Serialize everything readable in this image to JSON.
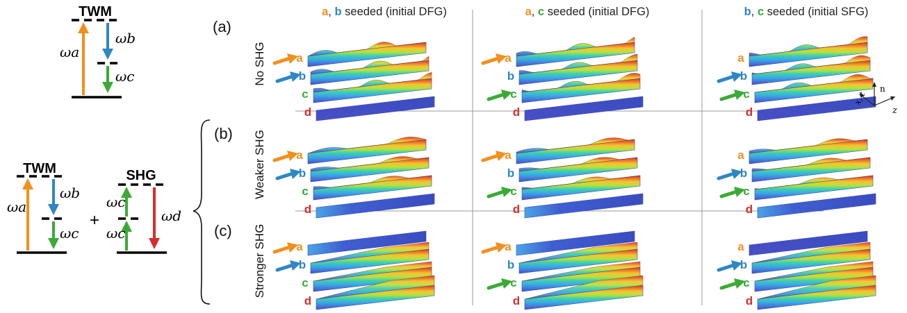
{
  "colors": {
    "a": "#f0901e",
    "b": "#2f86c3",
    "c": "#3aaa35",
    "d": "#d32f2f",
    "grid": "#9a9a9a"
  },
  "level_diagrams": {
    "top_twm": {
      "title": "TWM",
      "omega_a": "ωa",
      "omega_b": "ωb",
      "omega_c": "ωc"
    },
    "bottom_twm": {
      "title": "TWM",
      "omega_a": "ωa",
      "omega_b": "ωb",
      "omega_c": "ωc"
    },
    "plus": "+",
    "shg": {
      "title": "SHG",
      "omega_c_upper": "ωc",
      "omega_c_lower": "ωc",
      "omega_d": "ωd"
    }
  },
  "panels": {
    "a": "(a)",
    "b": "(b)",
    "c": "(c)"
  },
  "rows": [
    {
      "label": "No SHG"
    },
    {
      "label": "Weaker SHG"
    },
    {
      "label": "Stronger SHG"
    }
  ],
  "columns": [
    {
      "seed1": "a",
      "sep": ",",
      "seed2": "b",
      "rest": " seeded (initial DFG)"
    },
    {
      "seed1": "a",
      "sep": ",",
      "seed2": "c",
      "rest": " seeded (initial DFG)"
    },
    {
      "seed1": "b",
      "sep": ",",
      "seed2": "c",
      "rest": " seeded (initial SFG)"
    }
  ],
  "wave_labels": [
    "a",
    "b",
    "c",
    "d"
  ],
  "seeded": [
    [
      "a",
      "b"
    ],
    [
      "a",
      "c"
    ],
    [
      "b",
      "c"
    ]
  ],
  "axes": {
    "x": "x, t",
    "n": "n",
    "z": "z"
  }
}
